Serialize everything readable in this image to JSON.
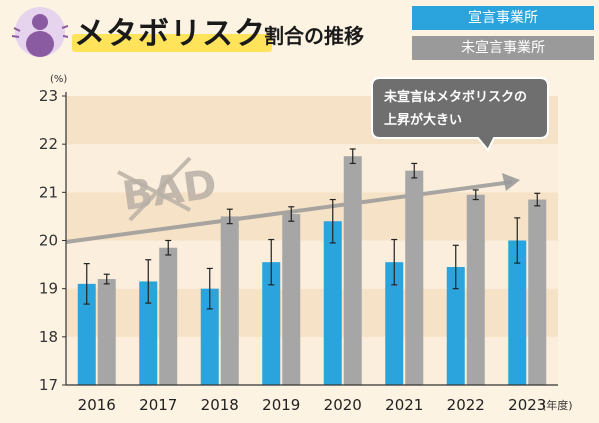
{
  "title": {
    "main": "メタボリスク",
    "sub": "割合の推移"
  },
  "legend": [
    {
      "label": "宣言事業所",
      "color": "#2ba3dc"
    },
    {
      "label": "未宣言事業所",
      "color": "#9a9a9a"
    }
  ],
  "annotation": {
    "line1": "未宣言はメタボリスクの",
    "line2": "上昇が大きい",
    "stamp": "BAD"
  },
  "chart_data": {
    "type": "bar",
    "title": "メタボリスク割合の推移",
    "ylabel": "(%)",
    "xlabel": "(年度)",
    "ylim": [
      17,
      23
    ],
    "yticks": [
      17,
      18,
      19,
      20,
      21,
      22,
      23
    ],
    "categories": [
      "2016",
      "2017",
      "2018",
      "2019",
      "2020",
      "2021",
      "2022",
      "2023"
    ],
    "error_bars": true,
    "series": [
      {
        "name": "宣言事業所",
        "color": "#2ba3dc",
        "values": [
          19.1,
          19.15,
          19.0,
          19.55,
          20.4,
          19.55,
          19.45,
          20.0
        ],
        "err": [
          0.42,
          0.45,
          0.42,
          0.47,
          0.45,
          0.47,
          0.45,
          0.47
        ]
      },
      {
        "name": "未宣言事業所",
        "color": "#a6a6a6",
        "values": [
          19.2,
          19.85,
          20.5,
          20.55,
          21.75,
          21.45,
          20.95,
          20.85
        ],
        "err": [
          0.1,
          0.15,
          0.15,
          0.15,
          0.15,
          0.15,
          0.1,
          0.13
        ]
      }
    ]
  }
}
